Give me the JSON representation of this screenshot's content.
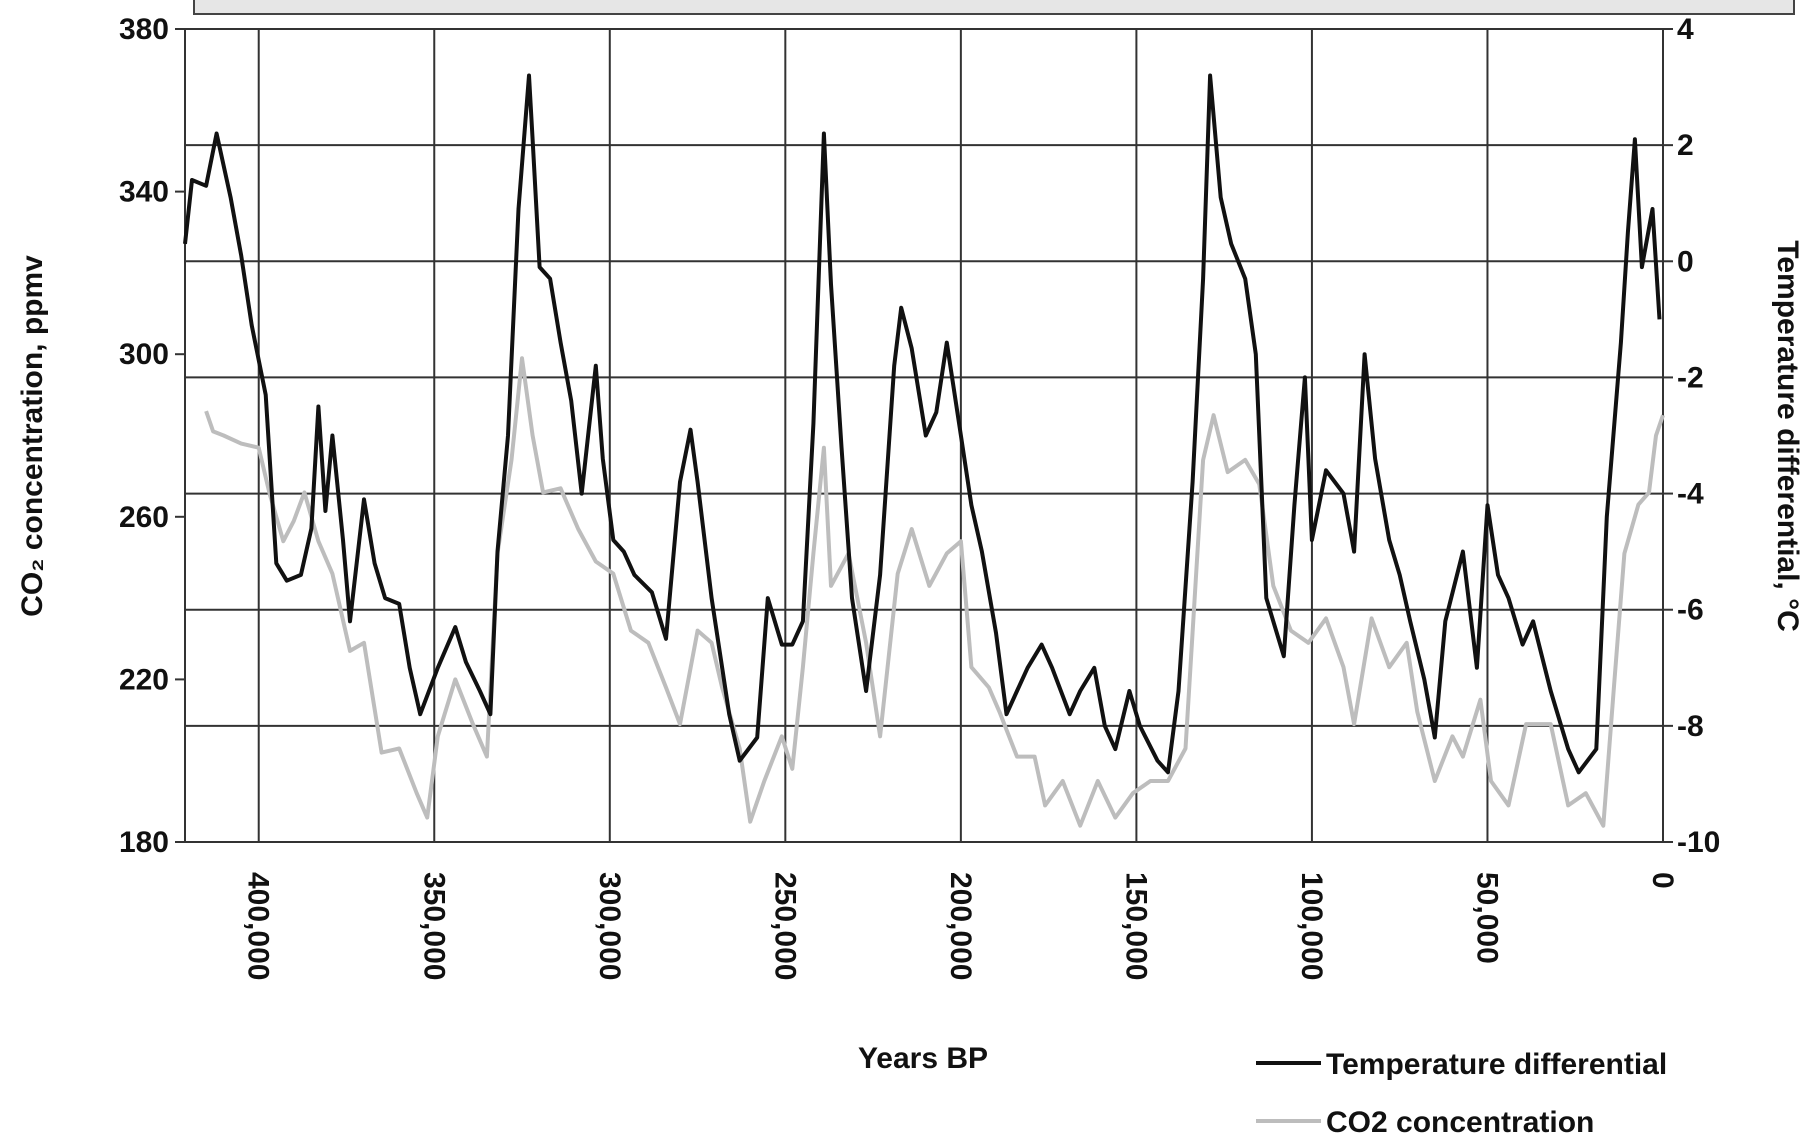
{
  "chart_data": {
    "type": "line",
    "x_label": "Years BP",
    "y_label": "CO₂ concentration, ppmv",
    "y2_label": "Temperature differential, °C",
    "xlim": [
      421000,
      0
    ],
    "xticks": [
      {
        "value": 400000,
        "label": "400,000"
      },
      {
        "value": 350000,
        "label": "350,000"
      },
      {
        "value": 300000,
        "label": "300,000"
      },
      {
        "value": 250000,
        "label": "250,000"
      },
      {
        "value": 200000,
        "label": "200,000"
      },
      {
        "value": 150000,
        "label": "150,000"
      },
      {
        "value": 100000,
        "label": "100,000"
      },
      {
        "value": 50000,
        "label": "50,000"
      },
      0
    ],
    "ylim": [
      180,
      380
    ],
    "yticks": [
      180,
      220,
      260,
      300,
      340,
      380
    ],
    "y2lim": [
      -10,
      4
    ],
    "y2ticks": [
      -10,
      -8,
      -6,
      -4,
      -2,
      0,
      2,
      4
    ],
    "grid": true,
    "legend": "bottom-right",
    "series": [
      {
        "name": "CO2 concentration",
        "color": "#bdbdbd",
        "x": [
          415000,
          413000,
          410000,
          405000,
          400000,
          397000,
          393000,
          390000,
          387000,
          383000,
          379000,
          374000,
          370000,
          365000,
          360000,
          355000,
          352000,
          349000,
          344000,
          339000,
          335000,
          332000,
          328000,
          325000,
          322000,
          319000,
          314000,
          309000,
          304000,
          299000,
          294000,
          289000,
          284000,
          280000,
          275000,
          271000,
          268000,
          263000,
          260000,
          256000,
          251000,
          248000,
          245000,
          242000,
          239000,
          237000,
          232000,
          227000,
          223000,
          218000,
          214000,
          209000,
          204000,
          200000,
          197000,
          192000,
          189000,
          184000,
          179000,
          176000,
          171000,
          166000,
          161000,
          156000,
          151000,
          146000,
          141000,
          136000,
          131000,
          128000,
          124000,
          119000,
          115000,
          111000,
          106000,
          101000,
          96000,
          91000,
          88000,
          83000,
          78000,
          73000,
          70000,
          65000,
          60000,
          57000,
          52000,
          49000,
          44000,
          39000,
          32000,
          27000,
          22000,
          17000,
          14000,
          11000,
          7000,
          4000,
          2000,
          0
        ],
        "values": [
          286,
          281,
          280,
          278,
          277,
          266,
          254,
          259,
          266,
          254,
          246,
          227,
          229,
          202,
          203,
          192,
          186,
          206,
          220,
          209,
          201,
          251,
          274,
          299,
          280,
          266,
          267,
          257,
          249,
          246,
          232,
          229,
          218,
          209,
          232,
          229,
          218,
          203,
          185,
          195,
          206,
          198,
          223,
          251,
          277,
          243,
          251,
          229,
          206,
          246,
          257,
          243,
          251,
          254,
          223,
          218,
          212,
          201,
          201,
          189,
          195,
          184,
          195,
          186,
          192,
          195,
          195,
          203,
          274,
          285,
          271,
          274,
          268,
          243,
          232,
          229,
          235,
          223,
          209,
          235,
          223,
          229,
          212,
          195,
          206,
          201,
          215,
          195,
          189,
          209,
          209,
          189,
          192,
          184,
          218,
          251,
          263,
          266,
          280,
          285
        ]
      },
      {
        "name": "Temperature differential",
        "color": "#111111",
        "axis": "y2",
        "x": [
          421000,
          419000,
          415000,
          412000,
          408000,
          405000,
          402000,
          398000,
          395000,
          392000,
          388000,
          385000,
          383000,
          381000,
          379000,
          376000,
          374000,
          370000,
          367000,
          364000,
          360000,
          357000,
          354000,
          349000,
          344000,
          341000,
          337000,
          334000,
          332000,
          329000,
          326000,
          323000,
          322000,
          320000,
          317000,
          314000,
          311000,
          308000,
          304000,
          302000,
          299000,
          296000,
          293000,
          288000,
          284000,
          280000,
          277000,
          275000,
          271000,
          266000,
          263000,
          258000,
          255000,
          251000,
          248000,
          245000,
          242000,
          239000,
          237000,
          234000,
          231000,
          227000,
          223000,
          219000,
          217000,
          214000,
          210000,
          207000,
          204000,
          200000,
          197000,
          194000,
          190000,
          187000,
          184000,
          181000,
          177000,
          174000,
          169000,
          166000,
          162000,
          159000,
          156000,
          152000,
          149000,
          144000,
          141000,
          138000,
          134000,
          131000,
          129000,
          126000,
          123000,
          119000,
          116000,
          113000,
          108000,
          105000,
          102000,
          100000,
          96000,
          91000,
          88000,
          85000,
          82000,
          78000,
          75000,
          72000,
          68000,
          65000,
          62000,
          57000,
          53000,
          50000,
          47000,
          44000,
          40000,
          37000,
          32000,
          27000,
          24000,
          19000,
          16000,
          12000,
          10000,
          8000,
          6000,
          3000,
          1000
        ],
        "values": [
          0.3,
          1.4,
          1.3,
          2.2,
          1.1,
          0.1,
          -1.1,
          -2.3,
          -5.2,
          -5.5,
          -5.4,
          -4.6,
          -2.5,
          -4.3,
          -3.0,
          -4.8,
          -6.2,
          -4.1,
          -5.2,
          -5.8,
          -5.9,
          -7.0,
          -7.8,
          -7.0,
          -6.3,
          -6.9,
          -7.4,
          -7.8,
          -5.0,
          -3.0,
          0.9,
          3.2,
          2.1,
          -0.1,
          -0.3,
          -1.4,
          -2.4,
          -4.0,
          -1.8,
          -3.4,
          -4.8,
          -5.0,
          -5.4,
          -5.7,
          -6.5,
          -3.8,
          -2.9,
          -3.8,
          -5.8,
          -7.8,
          -8.6,
          -8.2,
          -5.8,
          -6.6,
          -6.6,
          -6.2,
          -2.8,
          2.2,
          -0.4,
          -3.2,
          -5.8,
          -7.4,
          -5.4,
          -1.8,
          -0.8,
          -1.5,
          -3.0,
          -2.6,
          -1.4,
          -3.0,
          -4.2,
          -5.0,
          -6.4,
          -7.8,
          -7.4,
          -7.0,
          -6.6,
          -7.0,
          -7.8,
          -7.4,
          -7.0,
          -8.0,
          -8.4,
          -7.4,
          -8.0,
          -8.6,
          -8.8,
          -7.4,
          -3.8,
          -0.3,
          3.2,
          1.1,
          0.3,
          -0.3,
          -1.6,
          -5.8,
          -6.8,
          -4.2,
          -2.0,
          -4.8,
          -3.6,
          -4.0,
          -5.0,
          -1.6,
          -3.4,
          -4.8,
          -5.4,
          -6.2,
          -7.2,
          -8.2,
          -6.2,
          -5.0,
          -7.0,
          -4.2,
          -5.4,
          -5.8,
          -6.6,
          -6.2,
          -7.4,
          -8.4,
          -8.8,
          -8.4,
          -4.4,
          -1.4,
          0.5,
          2.1,
          -0.1,
          0.9,
          -1.0
        ]
      }
    ]
  }
}
